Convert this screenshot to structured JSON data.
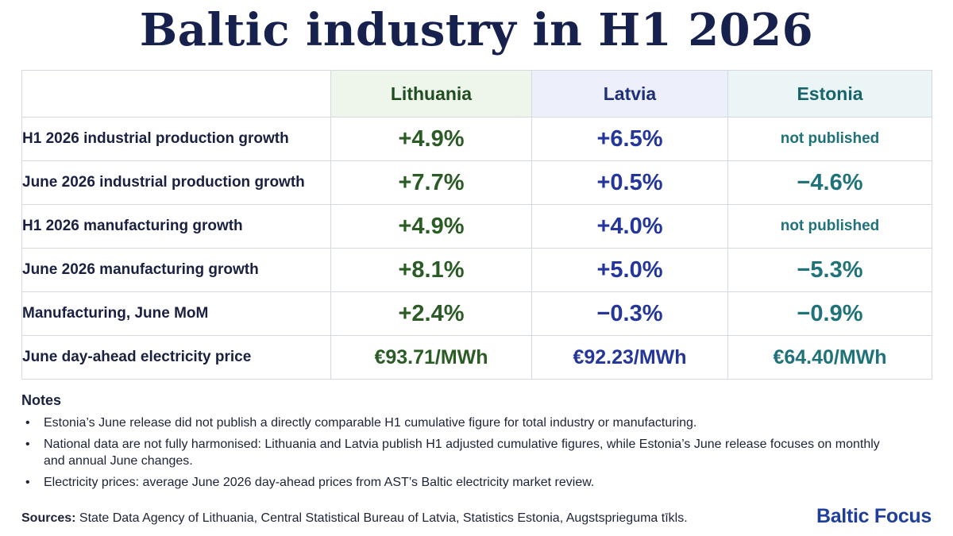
{
  "title": "Baltic industry in H1 2026",
  "table": {
    "columns": [
      "Lithuania",
      "Latvia",
      "Estonia"
    ],
    "rows": [
      {
        "label": "H1 2026 industrial production growth",
        "values": [
          "+4.9%",
          "+6.5%",
          "not published"
        ]
      },
      {
        "label": "June 2026 industrial production growth",
        "values": [
          "+7.7%",
          "+0.5%",
          "−4.6%"
        ]
      },
      {
        "label": "H1 2026 manufacturing growth",
        "values": [
          "+4.9%",
          "+4.0%",
          "not published"
        ]
      },
      {
        "label": "June 2026 manufacturing growth",
        "values": [
          "+8.1%",
          "+5.0%",
          "−5.3%"
        ]
      },
      {
        "label": "Manufacturing, June MoM",
        "values": [
          "+2.4%",
          "−0.3%",
          "−0.9%"
        ]
      },
      {
        "label": "June day-ahead electricity price",
        "values": [
          "€93.71/MWh",
          "€92.23/MWh",
          "€64.40/MWh"
        ]
      }
    ]
  },
  "notes": {
    "heading": "Notes",
    "items": [
      "Estonia’s June release did not publish a directly comparable H1 cumulative figure for total industry or manufacturing.",
      "National data are not fully harmonised: Lithuania and Latvia publish H1 adjusted cumulative figures, while Estonia’s June release focuses on monthly and annual June changes.",
      "Electricity prices: average June 2026 day-ahead prices from AST’s Baltic electricity market review."
    ]
  },
  "sources": {
    "label": "Sources:",
    "text": "State Data Agency of Lithuania, Central Statistical Bureau of Latvia, Statistics Estonia, Augstsprieguma tīkls."
  },
  "brand": "Baltic Focus",
  "colors": {
    "lithuania": "#2b5c25",
    "latvia": "#24369a",
    "estonia": "#1f7279",
    "title": "#17214d"
  }
}
